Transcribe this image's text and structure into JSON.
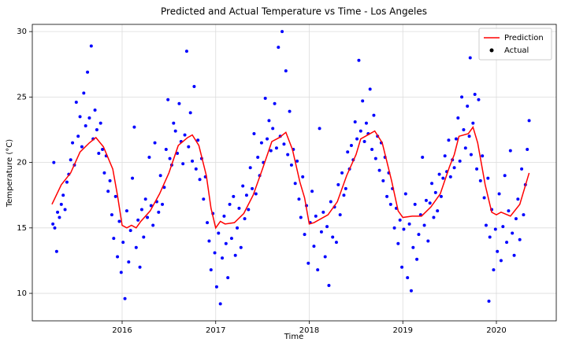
{
  "chart_data": {
    "type": "line",
    "title": "Predicted and Actual Temperature vs Time - Los Angeles",
    "xlabel": "Time",
    "ylabel": "Temperature (°C)",
    "xlim": [
      2015.04,
      2020.64
    ],
    "xticks": [
      2016,
      2017,
      2018,
      2019,
      2020
    ],
    "ylim": [
      7.9,
      30.55
    ],
    "yticks": [
      10,
      15,
      20,
      25,
      30
    ],
    "grid": true,
    "legend": "upper right",
    "series": [
      {
        "name": "Prediction",
        "type": "line",
        "color": "#ff0000",
        "x": [
          2015.25,
          2015.35,
          2015.45,
          2015.55,
          2015.65,
          2015.72,
          2015.8,
          2015.9,
          2015.95,
          2016.0,
          2016.05,
          2016.1,
          2016.15,
          2016.2,
          2016.3,
          2016.4,
          2016.5,
          2016.6,
          2016.7,
          2016.75,
          2016.82,
          2016.9,
          2016.95,
          2017.0,
          2017.05,
          2017.1,
          2017.2,
          2017.3,
          2017.4,
          2017.5,
          2017.6,
          2017.68,
          2017.75,
          2017.82,
          2017.9,
          2017.95,
          2018.0,
          2018.05,
          2018.1,
          2018.2,
          2018.3,
          2018.4,
          2018.5,
          2018.55,
          2018.6,
          2018.7,
          2018.78,
          2018.88,
          2018.95,
          2019.0,
          2019.1,
          2019.2,
          2019.3,
          2019.4,
          2019.5,
          2019.55,
          2019.6,
          2019.7,
          2019.75,
          2019.8,
          2019.88,
          2019.95,
          2020.0,
          2020.05,
          2020.15,
          2020.25,
          2020.35
        ],
        "values": [
          16.8,
          18.3,
          19.2,
          20.8,
          21.5,
          21.9,
          21.2,
          19.5,
          17.5,
          15.2,
          15.0,
          15.2,
          15.0,
          15.5,
          16.3,
          17.6,
          19.2,
          21.3,
          21.9,
          22.1,
          21.3,
          19.0,
          16.5,
          15.0,
          15.5,
          15.3,
          15.4,
          16.1,
          17.5,
          19.5,
          21.6,
          21.9,
          22.3,
          21.0,
          18.5,
          17.3,
          15.3,
          15.4,
          15.6,
          16.0,
          17.0,
          19.0,
          20.6,
          21.8,
          22.0,
          22.4,
          21.5,
          18.6,
          16.3,
          15.8,
          15.9,
          15.9,
          16.6,
          17.6,
          19.7,
          20.6,
          22.0,
          22.2,
          22.7,
          21.5,
          18.3,
          16.2,
          16.0,
          16.2,
          15.9,
          16.8,
          19.2
        ]
      },
      {
        "name": "Actual",
        "type": "scatter",
        "color": "#0000ff",
        "x": [
          2015.26,
          2015.27,
          2015.28,
          2015.3,
          2015.31,
          2015.33,
          2015.35,
          2015.37,
          2015.39,
          2015.41,
          2015.43,
          2015.45,
          2015.47,
          2015.49,
          2015.51,
          2015.53,
          2015.55,
          2015.57,
          2015.59,
          2015.61,
          2015.63,
          2015.65,
          2015.67,
          2015.69,
          2015.71,
          2015.73,
          2015.75,
          2015.77,
          2015.79,
          2015.81,
          2015.83,
          2015.85,
          2015.87,
          2015.89,
          2015.91,
          2015.93,
          2015.95,
          2015.97,
          2015.99,
          2016.01,
          2016.03,
          2016.05,
          2016.07,
          2016.09,
          2016.11,
          2016.13,
          2016.15,
          2016.17,
          2016.19,
          2016.21,
          2016.23,
          2016.25,
          2016.27,
          2016.29,
          2016.31,
          2016.33,
          2016.35,
          2016.37,
          2016.39,
          2016.41,
          2016.43,
          2016.45,
          2016.47,
          2016.49,
          2016.51,
          2016.53,
          2016.55,
          2016.57,
          2016.59,
          2016.61,
          2016.63,
          2016.65,
          2016.67,
          2016.69,
          2016.71,
          2016.73,
          2016.75,
          2016.77,
          2016.79,
          2016.81,
          2016.83,
          2016.85,
          2016.87,
          2016.89,
          2016.91,
          2016.93,
          2016.95,
          2016.97,
          2016.99,
          2017.01,
          2017.03,
          2017.05,
          2017.07,
          2017.09,
          2017.11,
          2017.13,
          2017.15,
          2017.17,
          2017.19,
          2017.21,
          2017.23,
          2017.25,
          2017.27,
          2017.29,
          2017.31,
          2017.33,
          2017.35,
          2017.37,
          2017.39,
          2017.41,
          2017.43,
          2017.45,
          2017.47,
          2017.49,
          2017.51,
          2017.53,
          2017.55,
          2017.57,
          2017.59,
          2017.61,
          2017.63,
          2017.65,
          2017.67,
          2017.69,
          2017.71,
          2017.73,
          2017.75,
          2017.77,
          2017.79,
          2017.81,
          2017.83,
          2017.85,
          2017.87,
          2017.89,
          2017.91,
          2017.93,
          2017.95,
          2017.97,
          2017.99,
          2018.01,
          2018.03,
          2018.05,
          2018.07,
          2018.09,
          2018.11,
          2018.13,
          2018.15,
          2018.17,
          2018.19,
          2018.21,
          2018.23,
          2018.25,
          2018.27,
          2018.29,
          2018.31,
          2018.33,
          2018.35,
          2018.37,
          2018.39,
          2018.41,
          2018.43,
          2018.45,
          2018.47,
          2018.49,
          2018.51,
          2018.53,
          2018.55,
          2018.57,
          2018.59,
          2018.61,
          2018.63,
          2018.65,
          2018.67,
          2018.69,
          2018.71,
          2018.73,
          2018.75,
          2018.77,
          2018.79,
          2018.81,
          2018.83,
          2018.85,
          2018.87,
          2018.89,
          2018.91,
          2018.93,
          2018.95,
          2018.97,
          2018.99,
          2019.01,
          2019.03,
          2019.05,
          2019.07,
          2019.09,
          2019.11,
          2019.13,
          2019.15,
          2019.17,
          2019.19,
          2019.21,
          2019.23,
          2019.25,
          2019.27,
          2019.29,
          2019.31,
          2019.33,
          2019.35,
          2019.37,
          2019.39,
          2019.41,
          2019.43,
          2019.45,
          2019.47,
          2019.49,
          2019.51,
          2019.53,
          2019.55,
          2019.57,
          2019.59,
          2019.61,
          2019.63,
          2019.65,
          2019.67,
          2019.69,
          2019.71,
          2019.72,
          2019.73,
          2019.75,
          2019.77,
          2019.79,
          2019.81,
          2019.83,
          2019.85,
          2019.87,
          2019.89,
          2019.91,
          2019.92,
          2019.93,
          2019.95,
          2019.97,
          2019.99,
          2020.01,
          2020.03,
          2020.05,
          2020.07,
          2020.09,
          2020.11,
          2020.13,
          2020.15,
          2020.17,
          2020.19,
          2020.21,
          2020.23,
          2020.25,
          2020.27,
          2020.29,
          2020.31,
          2020.33,
          2020.35
        ],
        "values": [
          15.3,
          20.0,
          15.0,
          13.2,
          16.2,
          15.8,
          16.8,
          17.5,
          16.4,
          18.5,
          19.1,
          20.2,
          21.5,
          19.8,
          24.6,
          22.0,
          23.5,
          21.2,
          25.3,
          22.8,
          26.9,
          23.4,
          28.9,
          21.8,
          24.0,
          22.5,
          20.7,
          23.0,
          21.0,
          19.2,
          20.5,
          17.8,
          18.6,
          16.0,
          14.2,
          17.4,
          12.8,
          15.5,
          11.6,
          13.9,
          9.6,
          16.3,
          12.4,
          14.8,
          18.8,
          22.7,
          13.5,
          15.6,
          12.0,
          16.4,
          14.3,
          17.2,
          15.8,
          20.4,
          16.7,
          15.2,
          21.5,
          17.0,
          16.2,
          19.0,
          16.8,
          18.1,
          21.0,
          24.8,
          20.3,
          19.8,
          23.0,
          22.4,
          20.7,
          24.5,
          21.6,
          19.9,
          22.1,
          28.5,
          21.2,
          23.8,
          20.1,
          25.8,
          19.5,
          21.7,
          18.7,
          20.3,
          17.2,
          18.9,
          15.4,
          14.0,
          11.8,
          16.1,
          13.1,
          10.5,
          14.6,
          9.2,
          12.7,
          15.9,
          13.8,
          11.2,
          16.8,
          14.2,
          17.4,
          12.9,
          15.0,
          16.5,
          13.5,
          18.2,
          15.7,
          17.5,
          16.4,
          19.6,
          18.0,
          22.2,
          17.6,
          20.4,
          19.0,
          21.5,
          20.0,
          24.9,
          21.8,
          23.2,
          20.9,
          22.6,
          24.5,
          21.1,
          28.8,
          22.0,
          30.0,
          21.4,
          27.0,
          20.6,
          23.9,
          19.8,
          21.0,
          18.4,
          20.1,
          17.2,
          15.8,
          18.9,
          14.5,
          16.7,
          12.3,
          15.4,
          17.8,
          13.6,
          15.9,
          11.8,
          22.6,
          14.7,
          16.2,
          12.8,
          15.1,
          10.6,
          17.0,
          14.3,
          16.6,
          13.9,
          18.3,
          16.0,
          19.2,
          17.5,
          18.0,
          20.8,
          19.5,
          21.3,
          20.2,
          23.1,
          21.8,
          27.8,
          22.4,
          24.7,
          21.6,
          23.0,
          22.2,
          25.6,
          21.0,
          23.6,
          20.3,
          22.0,
          19.4,
          21.5,
          18.6,
          20.4,
          17.4,
          19.2,
          16.8,
          18.0,
          15.0,
          16.5,
          13.8,
          15.6,
          12.0,
          14.9,
          17.6,
          11.2,
          15.3,
          10.2,
          13.5,
          16.8,
          12.6,
          14.5,
          16.0,
          20.4,
          15.2,
          17.1,
          14.0,
          16.9,
          18.4,
          15.8,
          17.7,
          16.3,
          19.1,
          17.4,
          18.8,
          20.5,
          19.3,
          21.7,
          18.9,
          20.2,
          19.6,
          21.8,
          23.4,
          20.1,
          25.0,
          22.5,
          21.1,
          24.3,
          22.0,
          28.0,
          20.6,
          23.0,
          25.2,
          19.5,
          24.8,
          18.6,
          20.5,
          17.3,
          15.2,
          18.8,
          9.4,
          14.3,
          16.4,
          11.8,
          14.9,
          13.2,
          17.6,
          12.5,
          15.1,
          19.0,
          13.9,
          16.3,
          20.9,
          14.6,
          12.9,
          15.7,
          17.2,
          14.1,
          19.5,
          16.0,
          18.3,
          21.0,
          23.2
        ]
      }
    ]
  }
}
